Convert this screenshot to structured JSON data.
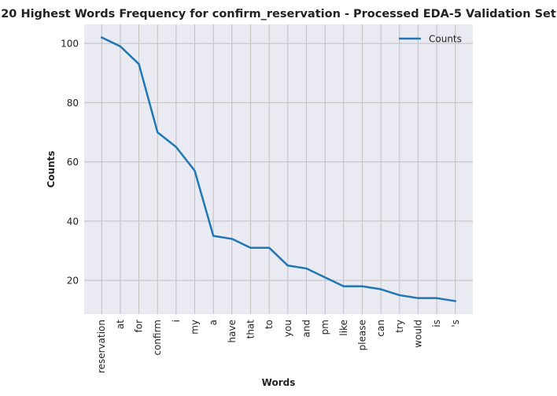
{
  "chart_data": {
    "type": "line",
    "title": "20 Highest Words Frequency for confirm_reservation - Processed EDA-5 Validation Set",
    "xlabel": "Words",
    "ylabel": "Counts",
    "categories": [
      "reservation",
      "at",
      "for",
      "confirm",
      "i",
      "my",
      "a",
      "have",
      "that",
      "to",
      "you",
      "and",
      "pm",
      "like",
      "please",
      "can",
      "try",
      "would",
      "is",
      "'s"
    ],
    "series": [
      {
        "name": "Counts",
        "values": [
          102,
          99,
          93,
          70,
          65,
          57,
          35,
          34,
          31,
          31,
          25,
          24,
          21,
          18,
          18,
          17,
          15,
          14,
          14,
          13
        ],
        "color": "#1f77b4"
      }
    ],
    "yticks": [
      20,
      40,
      60,
      80,
      100
    ],
    "ylim": [
      8.6,
      106.4
    ],
    "grid": true,
    "legend": "top-right",
    "background": "#eaeaf2",
    "grid_color": "#c0c0c0"
  }
}
